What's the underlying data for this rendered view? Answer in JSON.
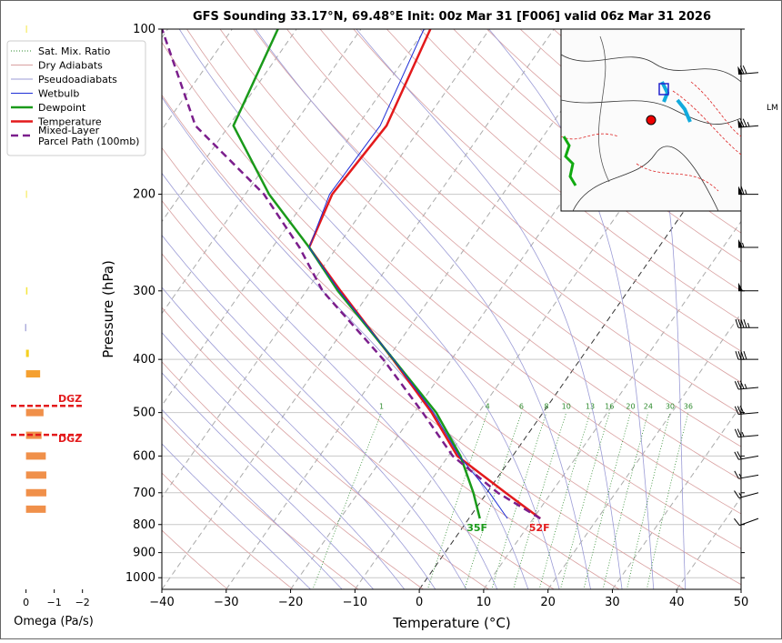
{
  "chart_data": {
    "type": "skewt",
    "title": "GFS Sounding 33.17°N, 69.48°E Init: 00z Mar 31 [F006] valid 06z Mar 31 2026",
    "x_label": "Temperature (°C)",
    "y_label": "Pressure (hPa)",
    "xlim": [
      -40,
      50
    ],
    "ylim": [
      1050,
      100
    ],
    "log_y": true,
    "grid": true,
    "xticks": [
      {
        "value": -40,
        "label": "−40"
      },
      {
        "value": -30,
        "label": "−30"
      },
      {
        "value": -20,
        "label": "−20"
      },
      {
        "value": -10,
        "label": "−10"
      },
      0,
      10,
      20,
      30,
      40,
      50
    ],
    "yticks": [
      100,
      200,
      300,
      400,
      500,
      600,
      700,
      800,
      900,
      1000
    ],
    "pressure": [
      780,
      700,
      600,
      500,
      400,
      300,
      250,
      200,
      150,
      100
    ],
    "series": [
      {
        "name": "Temperature",
        "color": "#e31a1c",
        "width": 2.5,
        "dash": "none",
        "surface_label": "52F",
        "values": [
          11.1,
          2.9,
          -8.6,
          -17.3,
          -29.1,
          -44.7,
          -54.3,
          -56.5,
          -55.5,
          -59.2
        ]
      },
      {
        "name": "Dewpoint",
        "color": "#1a9a1a",
        "width": 2.5,
        "dash": "none",
        "surface_label": "35F",
        "values": [
          1.7,
          -2.1,
          -8.1,
          -16.6,
          -29.0,
          -45.1,
          -54.3,
          -66.3,
          -79.3,
          -82.9
        ]
      },
      {
        "name": "Wetbulb",
        "color": "#1f2fd6",
        "width": 1,
        "dash": "none",
        "values": [
          6.0,
          0.4,
          -8.3,
          -17.0,
          -29.0,
          -44.9,
          -54.3,
          -56.9,
          -56.5,
          -60.2
        ]
      },
      {
        "name": "Mixed-Layer\nParcel Path (100mb)",
        "color": "#7b1e8c",
        "width": 2.5,
        "dash": "8 5",
        "values": [
          11.1,
          1.7,
          -9.3,
          -18.7,
          -30.6,
          -47.5,
          -55.8,
          -67.1,
          -85.2,
          -100.9
        ]
      }
    ],
    "background_lines": [
      {
        "name": "Sat. Mix. Ratio",
        "color": "#2e8b2e",
        "dash": "1 2"
      },
      {
        "name": "Dry Adiabats",
        "color": "#d9a0a0",
        "dash": "none"
      },
      {
        "name": "Pseudoadiabats",
        "color": "#9b9bd6",
        "dash": "none"
      }
    ],
    "mixing_ratios": [
      1,
      4,
      6,
      8,
      10,
      13,
      16,
      20,
      24,
      30,
      36
    ],
    "omega": {
      "x_label": "Omega (Pa/s)",
      "xlim": [
        0.6,
        -2.3
      ],
      "xticks": [
        0,
        {
          "value": -1,
          "label": "−1"
        },
        {
          "value": -2,
          "label": "−2"
        }
      ],
      "pressure": [
        100,
        200,
        300,
        350,
        390,
        425,
        500,
        550,
        600,
        650,
        700,
        750
      ],
      "values": [
        -0.02,
        -0.03,
        -0.05,
        0.03,
        -0.1,
        -0.5,
        -0.62,
        -0.55,
        -0.7,
        -0.72,
        -0.72,
        -0.7
      ],
      "colors": [
        "#f5e642",
        "#f5e642",
        "#f5e642",
        "#8888cc",
        "#f5d020",
        "#f5a030",
        "#f0904a",
        "#f0904a",
        "#f0904a",
        "#f0904a",
        "#f0904a",
        "#f0904a"
      ]
    },
    "dgz": {
      "pressure": [
        486,
        549
      ],
      "labels": [
        "DGZ",
        "DGZ"
      ],
      "color": "#e31a1c"
    },
    "winds": {
      "pressure": [
        780,
        700,
        650,
        600,
        550,
        500,
        450,
        400,
        350,
        300,
        250,
        200,
        150,
        120
      ],
      "speed": [
        10,
        15,
        15,
        20,
        25,
        30,
        35,
        40,
        45,
        50,
        55,
        65,
        75,
        70
      ],
      "direction": [
        250,
        255,
        260,
        260,
        265,
        265,
        265,
        270,
        270,
        270,
        270,
        270,
        265,
        265
      ]
    },
    "map_label": "LM"
  }
}
